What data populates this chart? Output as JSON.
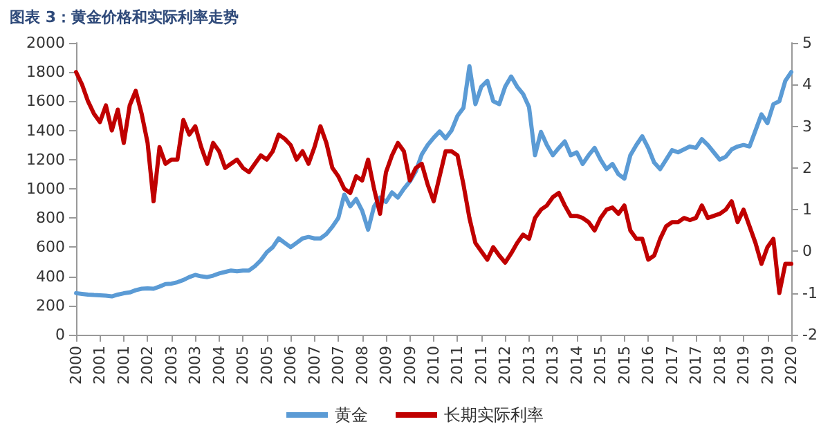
{
  "chart_data": {
    "type": "line",
    "title": "图表 3：黄金价格和实际利率走势",
    "categories": [
      "2000",
      null,
      null,
      null,
      "2001",
      null,
      null,
      null,
      "2001",
      null,
      null,
      null,
      "2002",
      null,
      null,
      null,
      "2003",
      null,
      null,
      null,
      "2003",
      null,
      null,
      null,
      "2004",
      null,
      null,
      null,
      "2005",
      null,
      null,
      null,
      "2005",
      null,
      null,
      null,
      "2006",
      null,
      null,
      null,
      "2007",
      null,
      null,
      null,
      "2007",
      null,
      null,
      null,
      "2008",
      null,
      null,
      null,
      "2009",
      null,
      null,
      null,
      "2009",
      null,
      null,
      null,
      "2010",
      null,
      null,
      null,
      "2011",
      null,
      null,
      null,
      "2011",
      null,
      null,
      null,
      "2012",
      null,
      null,
      null,
      "2013",
      null,
      null,
      null,
      "2013",
      null,
      null,
      null,
      "2014",
      null,
      null,
      null,
      "2015",
      null,
      null,
      null,
      "2015",
      null,
      null,
      null,
      "2016",
      null,
      null,
      null,
      "2017",
      null,
      null,
      null,
      "2017",
      null,
      null,
      null,
      "2018",
      null,
      null,
      null,
      "2019",
      null,
      null,
      null,
      "2019",
      null,
      null,
      null,
      "2020"
    ],
    "series": [
      {
        "name": "黄金",
        "color": "#5b9bd5",
        "values": [
          285,
          280,
          275,
          272,
          270,
          268,
          263,
          275,
          284,
          290,
          305,
          315,
          318,
          315,
          330,
          347,
          350,
          360,
          375,
          395,
          410,
          400,
          395,
          405,
          420,
          430,
          440,
          435,
          440,
          440,
          470,
          510,
          565,
          600,
          660,
          630,
          600,
          630,
          660,
          670,
          660,
          660,
          690,
          740,
          800,
          960,
          880,
          930,
          850,
          720,
          880,
          940,
          910,
          975,
          940,
          1000,
          1050,
          1120,
          1235,
          1300,
          1350,
          1393,
          1346,
          1400,
          1500,
          1555,
          1840,
          1580,
          1700,
          1740,
          1600,
          1580,
          1700,
          1770,
          1700,
          1650,
          1560,
          1230,
          1390,
          1300,
          1230,
          1280,
          1325,
          1230,
          1250,
          1170,
          1230,
          1280,
          1200,
          1135,
          1170,
          1100,
          1070,
          1230,
          1300,
          1360,
          1280,
          1180,
          1135,
          1200,
          1265,
          1250,
          1270,
          1290,
          1280,
          1340,
          1300,
          1250,
          1200,
          1220,
          1270,
          1290,
          1300,
          1290,
          1400,
          1510,
          1450,
          1580,
          1600,
          1740,
          1800
        ]
      },
      {
        "name": "长期实际利率",
        "color": "#c00000",
        "axis": "y2",
        "values": [
          4.3,
          4.0,
          3.6,
          3.3,
          3.1,
          3.5,
          2.9,
          3.4,
          2.6,
          3.5,
          3.85,
          3.3,
          2.6,
          1.2,
          2.5,
          2.1,
          2.2,
          2.2,
          3.15,
          2.8,
          3.0,
          2.5,
          2.1,
          2.6,
          2.4,
          2.0,
          2.1,
          2.2,
          2.0,
          1.9,
          2.1,
          2.3,
          2.2,
          2.4,
          2.8,
          2.7,
          2.55,
          2.2,
          2.4,
          2.1,
          2.5,
          3.0,
          2.6,
          2.0,
          1.8,
          1.5,
          1.4,
          1.8,
          1.7,
          2.2,
          1.5,
          0.9,
          1.9,
          2.3,
          2.6,
          2.4,
          1.7,
          2.0,
          2.1,
          1.6,
          1.2,
          1.8,
          2.4,
          2.4,
          2.3,
          1.6,
          0.8,
          0.2,
          0.0,
          -0.2,
          0.1,
          -0.1,
          -0.27,
          -0.05,
          0.2,
          0.4,
          0.3,
          0.8,
          1.0,
          1.1,
          1.3,
          1.4,
          1.1,
          0.85,
          0.85,
          0.8,
          0.7,
          0.5,
          0.8,
          1.0,
          1.05,
          0.9,
          1.1,
          0.5,
          0.3,
          0.3,
          -0.2,
          -0.1,
          0.3,
          0.6,
          0.7,
          0.7,
          0.8,
          0.75,
          0.8,
          1.1,
          0.8,
          0.85,
          0.9,
          1.0,
          1.2,
          0.7,
          1.0,
          0.6,
          0.2,
          -0.3,
          0.1,
          0.3,
          -1.0,
          -0.3,
          -0.3
        ]
      }
    ],
    "ylim": [
      0,
      2000
    ],
    "yticks": [
      0,
      200,
      400,
      600,
      800,
      1000,
      1200,
      1400,
      1600,
      1800,
      2000
    ],
    "y2lim": [
      -2,
      5
    ],
    "y2ticks": [
      -2,
      -1,
      0,
      1,
      2,
      3,
      4,
      5
    ],
    "legend": "bottom",
    "grid": false,
    "marker": "none",
    "line_style": "solid"
  }
}
